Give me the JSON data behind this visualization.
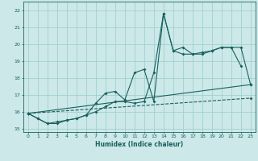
{
  "xlabel": "Humidex (Indice chaleur)",
  "background_color": "#cce8e8",
  "grid_color": "#99cccc",
  "line_color": "#1a6060",
  "marker": "D",
  "marker_size": 2.0,
  "line_width": 0.8,
  "xlim": [
    -0.5,
    23.5
  ],
  "ylim": [
    14.8,
    22.5
  ],
  "yticks": [
    15,
    16,
    17,
    18,
    19,
    20,
    21,
    22
  ],
  "xticks": [
    0,
    1,
    2,
    3,
    4,
    5,
    6,
    7,
    8,
    9,
    10,
    11,
    12,
    13,
    14,
    15,
    16,
    17,
    18,
    19,
    20,
    21,
    22,
    23
  ],
  "line1_x": [
    0,
    1,
    2,
    3,
    4,
    5,
    6,
    7,
    8,
    9,
    10,
    11,
    12,
    13,
    14,
    15,
    16,
    17,
    18,
    19,
    20,
    21,
    22
  ],
  "line1_y": [
    15.9,
    15.6,
    15.3,
    15.3,
    15.5,
    15.6,
    15.8,
    16.5,
    17.1,
    17.2,
    16.7,
    18.3,
    18.5,
    16.6,
    21.8,
    19.6,
    19.8,
    19.4,
    19.4,
    19.6,
    19.8,
    19.8,
    18.7
  ],
  "line2_x": [
    0,
    1,
    2,
    3,
    4,
    5,
    6,
    7,
    8,
    9,
    10,
    11,
    12,
    13,
    14,
    15,
    16,
    17,
    18,
    19,
    20,
    21,
    22,
    23
  ],
  "line2_y": [
    15.9,
    15.6,
    15.3,
    15.4,
    15.5,
    15.6,
    15.8,
    16.0,
    16.3,
    16.6,
    16.6,
    16.5,
    16.6,
    18.3,
    21.8,
    19.6,
    19.4,
    19.4,
    19.5,
    19.6,
    19.8,
    19.8,
    19.8,
    17.6
  ],
  "line3_x": [
    0,
    23
  ],
  "line3_y": [
    15.9,
    17.6
  ],
  "line4_x": [
    0,
    23
  ],
  "line4_y": [
    15.9,
    16.8
  ]
}
